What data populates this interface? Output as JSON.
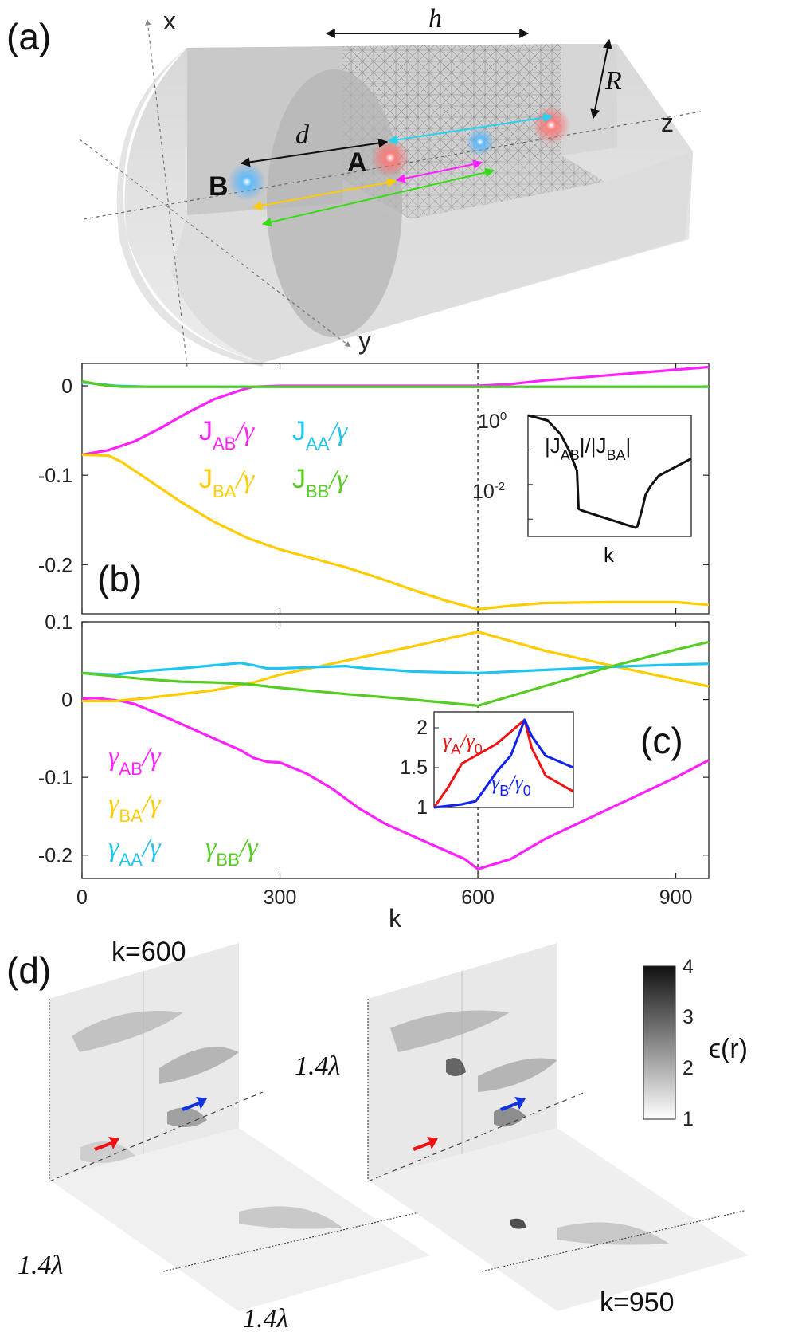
{
  "panel_labels": {
    "a": "(a)",
    "b": "(b)",
    "c": "(c)",
    "d": "(d)"
  },
  "panel_a": {
    "axes": {
      "x": "x",
      "y": "y",
      "z": "z"
    },
    "dims": {
      "h": "h",
      "R": "R",
      "d": "d"
    },
    "atoms": {
      "A": "A",
      "B": "B"
    },
    "colors": {
      "atom_A": "#ff5a5a",
      "atom_B": "#4aa8ff",
      "cyan": "#21d4f0",
      "magenta": "#ff21ff",
      "yellow": "#ffcc00",
      "green": "#33dd11"
    }
  },
  "panel_b": {
    "legend": [
      {
        "main": "J",
        "sub": "AB",
        "tail": "/γ",
        "color": "#ff21ff"
      },
      {
        "main": "J",
        "sub": "AA",
        "tail": "/γ",
        "color": "#21c4f0"
      },
      {
        "main": "J",
        "sub": "BA",
        "tail": "/γ",
        "color": "#ffcc00"
      },
      {
        "main": "J",
        "sub": "BB",
        "tail": "/γ",
        "color": "#55cc22"
      }
    ],
    "inset": {
      "label_parts": [
        "|J",
        "AB",
        "|/|J",
        "BA",
        "|"
      ],
      "xlabel": "k",
      "ytick_base": "10",
      "yticks": [
        "0",
        "-2"
      ]
    }
  },
  "panel_c": {
    "legend": [
      {
        "main": "γ",
        "sub": "AB",
        "tail": "/γ",
        "color": "#ff21ff"
      },
      {
        "main": "γ",
        "sub": "BA",
        "tail": "/γ",
        "color": "#ffcc00"
      },
      {
        "main": "γ",
        "sub": "AA",
        "tail": "/γ",
        "color": "#21c4f0"
      },
      {
        "main": "γ",
        "sub": "BB",
        "tail": "/γ",
        "color": "#55cc22"
      }
    ],
    "inset": {
      "labelA": {
        "main": "γ",
        "sub": "A",
        "tail": "/γ",
        "sub2": "0",
        "color": "#ee1111"
      },
      "labelB": {
        "main": "γ",
        "sub": "B",
        "tail": "/γ",
        "sub2": "0",
        "color": "#1122ee"
      }
    }
  },
  "panel_d": {
    "k_left": "k=600",
    "k_right": "k=950",
    "length_label": "1.4λ",
    "colorbar": {
      "label": "ϵ(r)",
      "ticks": [
        "4",
        "3",
        "2",
        "1"
      ]
    }
  },
  "chart_data": [
    {
      "type": "line",
      "title": "(b)",
      "xlabel": "",
      "ylabel": "",
      "xlim": [
        0,
        950
      ],
      "ylim": [
        -0.255,
        0.025
      ],
      "yticks": [
        0,
        -0.1,
        -0.2
      ],
      "ytick_labels": [
        "0",
        "-0.1",
        "-0.2"
      ],
      "vline_x": 600,
      "series": [
        {
          "name": "J_AB/γ",
          "color": "#ff21ff",
          "x": [
            0,
            40,
            80,
            120,
            160,
            200,
            240,
            260,
            300,
            600,
            650,
            700,
            800,
            900,
            950
          ],
          "values": [
            -0.077,
            -0.072,
            -0.062,
            -0.047,
            -0.03,
            -0.015,
            -0.005,
            -0.001,
            0.0,
            0.0,
            0.002,
            0.006,
            0.012,
            0.018,
            0.021
          ]
        },
        {
          "name": "J_AA/γ",
          "color": "#21c4f0",
          "x": [
            0,
            50,
            100,
            200,
            300,
            600,
            800,
            950
          ],
          "values": [
            0.004,
            0.0,
            -0.001,
            -0.001,
            -0.001,
            -0.001,
            -0.001,
            -0.001
          ]
        },
        {
          "name": "J_BA/γ",
          "color": "#ffcc00",
          "x": [
            0,
            40,
            60,
            100,
            150,
            200,
            250,
            280,
            300,
            350,
            400,
            450,
            500,
            550,
            600,
            650,
            700,
            800,
            900,
            950
          ],
          "values": [
            -0.077,
            -0.078,
            -0.085,
            -0.105,
            -0.13,
            -0.152,
            -0.17,
            -0.178,
            -0.183,
            -0.193,
            -0.203,
            -0.215,
            -0.228,
            -0.24,
            -0.25,
            -0.246,
            -0.243,
            -0.242,
            -0.242,
            -0.245
          ]
        },
        {
          "name": "J_BB/γ",
          "color": "#55cc22",
          "x": [
            0,
            30,
            60,
            100,
            300,
            600,
            950
          ],
          "values": [
            0.005,
            0.001,
            -0.001,
            -0.001,
            -0.001,
            -0.001,
            -0.001
          ]
        }
      ],
      "inset": {
        "type": "line",
        "ylabel_scale": "log",
        "ylim_log10": [
          -3.5,
          0
        ],
        "x": [
          0,
          0.12,
          0.2,
          0.25,
          0.3,
          0.31,
          0.33,
          0.66,
          0.67,
          0.7,
          0.72,
          0.75,
          0.8,
          0.9,
          1.0
        ],
        "values_log10": [
          0,
          -0.15,
          -0.55,
          -1.0,
          -1.6,
          -2.7,
          -2.75,
          -3.25,
          -3.2,
          -2.7,
          -2.3,
          -2.05,
          -1.75,
          -1.5,
          -1.25
        ]
      }
    },
    {
      "type": "line",
      "title": "(c)",
      "xlabel": "k",
      "ylabel": "",
      "xlim": [
        0,
        950
      ],
      "xticks": [
        0,
        300,
        600,
        900
      ],
      "ylim": [
        -0.23,
        0.1
      ],
      "yticks": [
        0.1,
        0,
        -0.1,
        -0.2
      ],
      "ytick_labels": [
        "0.1",
        "0",
        "-0.1",
        "-0.2"
      ],
      "vline_x": 600,
      "series": [
        {
          "name": "γ_AB/γ",
          "color": "#ff21ff",
          "x": [
            0,
            20,
            40,
            60,
            80,
            120,
            160,
            200,
            240,
            260,
            280,
            300,
            340,
            380,
            420,
            460,
            500,
            540,
            580,
            600,
            650,
            700,
            800,
            900,
            950
          ],
          "values": [
            0.001,
            0.002,
            0.0,
            -0.002,
            -0.006,
            -0.02,
            -0.035,
            -0.05,
            -0.065,
            -0.075,
            -0.08,
            -0.081,
            -0.095,
            -0.115,
            -0.14,
            -0.16,
            -0.175,
            -0.19,
            -0.205,
            -0.218,
            -0.205,
            -0.18,
            -0.14,
            -0.1,
            -0.078
          ]
        },
        {
          "name": "γ_BA/γ",
          "color": "#ffcc00",
          "x": [
            0,
            50,
            100,
            200,
            260,
            300,
            400,
            500,
            600,
            700,
            800,
            900,
            950
          ],
          "values": [
            -0.002,
            -0.002,
            0.002,
            0.012,
            0.022,
            0.032,
            0.05,
            0.068,
            0.087,
            0.063,
            0.044,
            0.026,
            0.017
          ]
        },
        {
          "name": "γ_AA/γ",
          "color": "#21c4f0",
          "x": [
            0,
            50,
            100,
            150,
            200,
            240,
            260,
            280,
            300,
            330,
            360,
            400,
            430,
            470,
            500,
            550,
            600,
            650,
            700,
            800,
            900,
            950
          ],
          "values": [
            0.034,
            0.032,
            0.037,
            0.04,
            0.044,
            0.047,
            0.044,
            0.04,
            0.04,
            0.041,
            0.042,
            0.043,
            0.04,
            0.038,
            0.036,
            0.035,
            0.034,
            0.036,
            0.038,
            0.042,
            0.045,
            0.046
          ]
        },
        {
          "name": "γ_BB/γ",
          "color": "#55cc22",
          "x": [
            0,
            50,
            100,
            150,
            200,
            250,
            300,
            400,
            500,
            600,
            700,
            800,
            900,
            950
          ],
          "values": [
            0.034,
            0.03,
            0.026,
            0.023,
            0.022,
            0.02,
            0.015,
            0.007,
            0.0,
            -0.008,
            0.017,
            0.042,
            0.064,
            0.074
          ]
        }
      ],
      "inset": {
        "type": "line",
        "ylim": [
          1,
          2.2
        ],
        "yticks": [
          1,
          1.5,
          2
        ],
        "ytick_labels": [
          "1",
          "1.5",
          "2"
        ],
        "series": [
          {
            "name": "γ_A/γ_0",
            "color": "#ee1111",
            "x": [
              0,
              0.1,
              0.2,
              0.3,
              0.35,
              0.45,
              0.55,
              0.65,
              0.7,
              0.8,
              1.0
            ],
            "values": [
              1.0,
              1.25,
              1.55,
              1.65,
              1.7,
              1.8,
              1.95,
              2.1,
              1.75,
              1.4,
              1.2
            ]
          },
          {
            "name": "γ_B/γ_0",
            "color": "#1122ee",
            "x": [
              0,
              0.1,
              0.2,
              0.3,
              0.35,
              0.45,
              0.55,
              0.65,
              0.7,
              0.8,
              1.0
            ],
            "values": [
              1.0,
              1.02,
              1.04,
              1.08,
              1.2,
              1.45,
              1.65,
              2.1,
              1.9,
              1.65,
              1.5
            ]
          }
        ]
      }
    }
  ]
}
